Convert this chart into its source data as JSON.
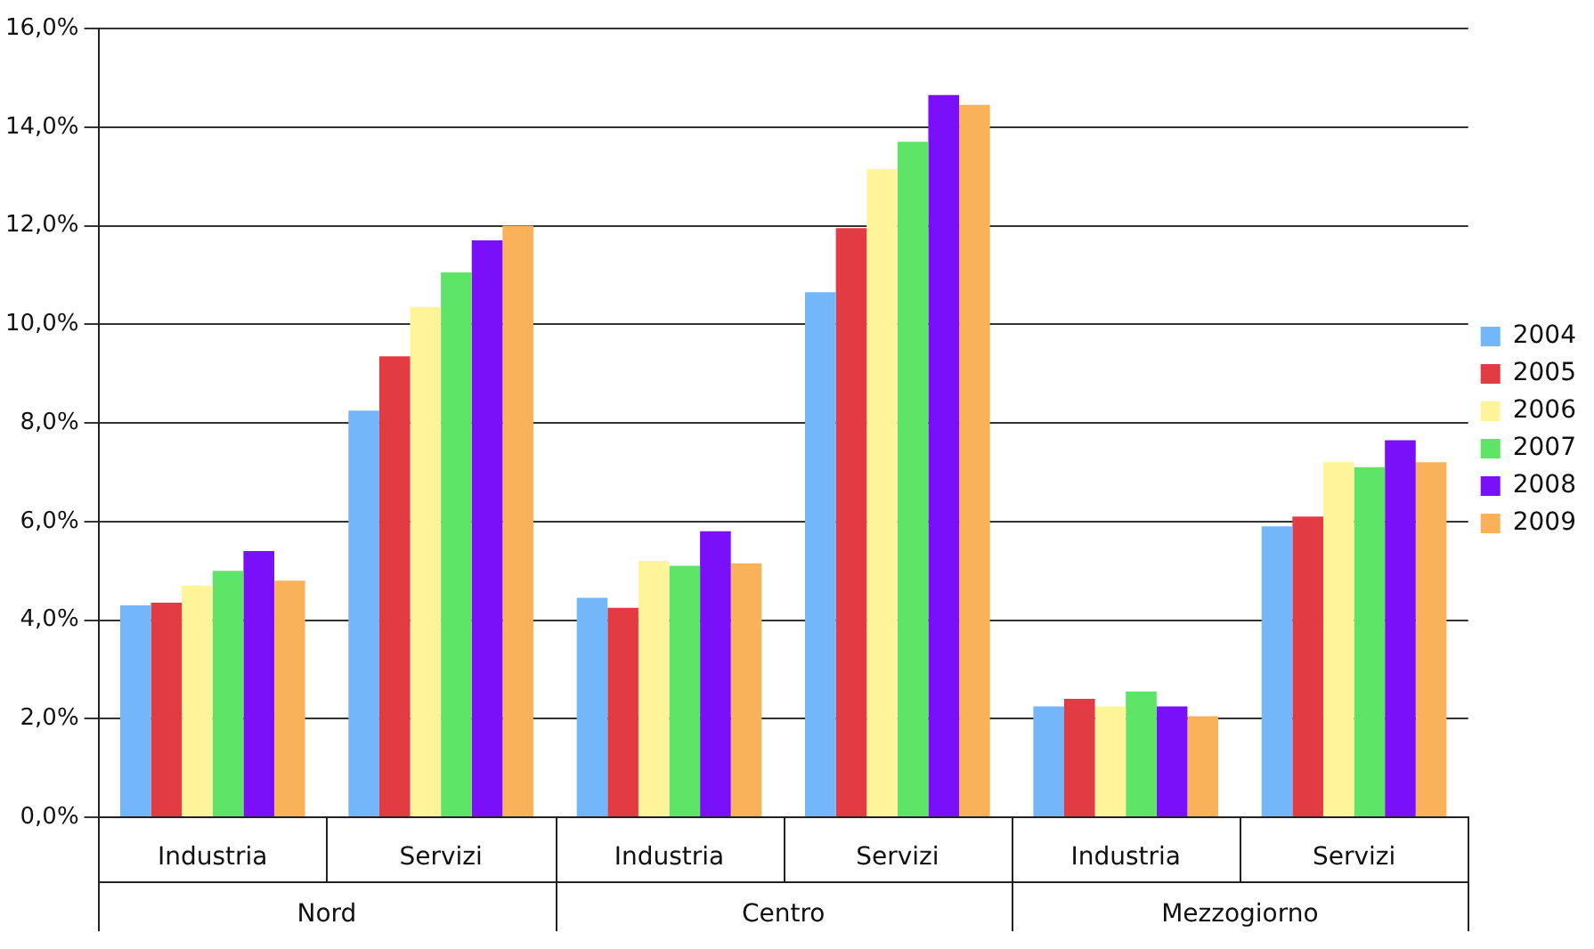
{
  "chart_data": {
    "type": "bar",
    "categories": [
      "Industria",
      "Servizi",
      "Industria",
      "Servizi",
      "Industria",
      "Servizi"
    ],
    "annotations": [
      "Nord",
      "Centro",
      "Mezzogiorno"
    ],
    "series": [
      {
        "name": "2004",
        "color": "#74b6fa",
        "values": [
          4.3,
          8.25,
          4.45,
          10.65,
          2.25,
          5.9
        ]
      },
      {
        "name": "2005",
        "color": "#e23b44",
        "values": [
          4.35,
          9.35,
          4.25,
          11.95,
          2.4,
          6.1
        ]
      },
      {
        "name": "2006",
        "color": "#fef59b",
        "values": [
          4.7,
          10.35,
          5.2,
          13.15,
          2.25,
          7.2
        ]
      },
      {
        "name": "2007",
        "color": "#5ee466",
        "values": [
          5.0,
          11.05,
          5.1,
          13.7,
          2.55,
          7.1
        ]
      },
      {
        "name": "2008",
        "color": "#7a10fa",
        "values": [
          5.4,
          11.7,
          5.8,
          14.65,
          2.25,
          7.65
        ]
      },
      {
        "name": "2009",
        "color": "#f9b259",
        "values": [
          4.8,
          12.0,
          5.15,
          14.45,
          2.05,
          7.2
        ]
      }
    ],
    "ylim": [
      0,
      16
    ],
    "yticks": [
      {
        "value": 0,
        "label": "0,0%"
      },
      {
        "value": 2,
        "label": "2,0%"
      },
      {
        "value": 4,
        "label": "4,0%"
      },
      {
        "value": 6,
        "label": "6,0%"
      },
      {
        "value": 8,
        "label": "8,0%"
      },
      {
        "value": 10,
        "label": "10,0%"
      },
      {
        "value": 12,
        "label": "12,0%"
      },
      {
        "value": 14,
        "label": "14,0%"
      },
      {
        "value": 16,
        "label": "16,0%"
      }
    ],
    "grid": "y",
    "legend": "right"
  }
}
